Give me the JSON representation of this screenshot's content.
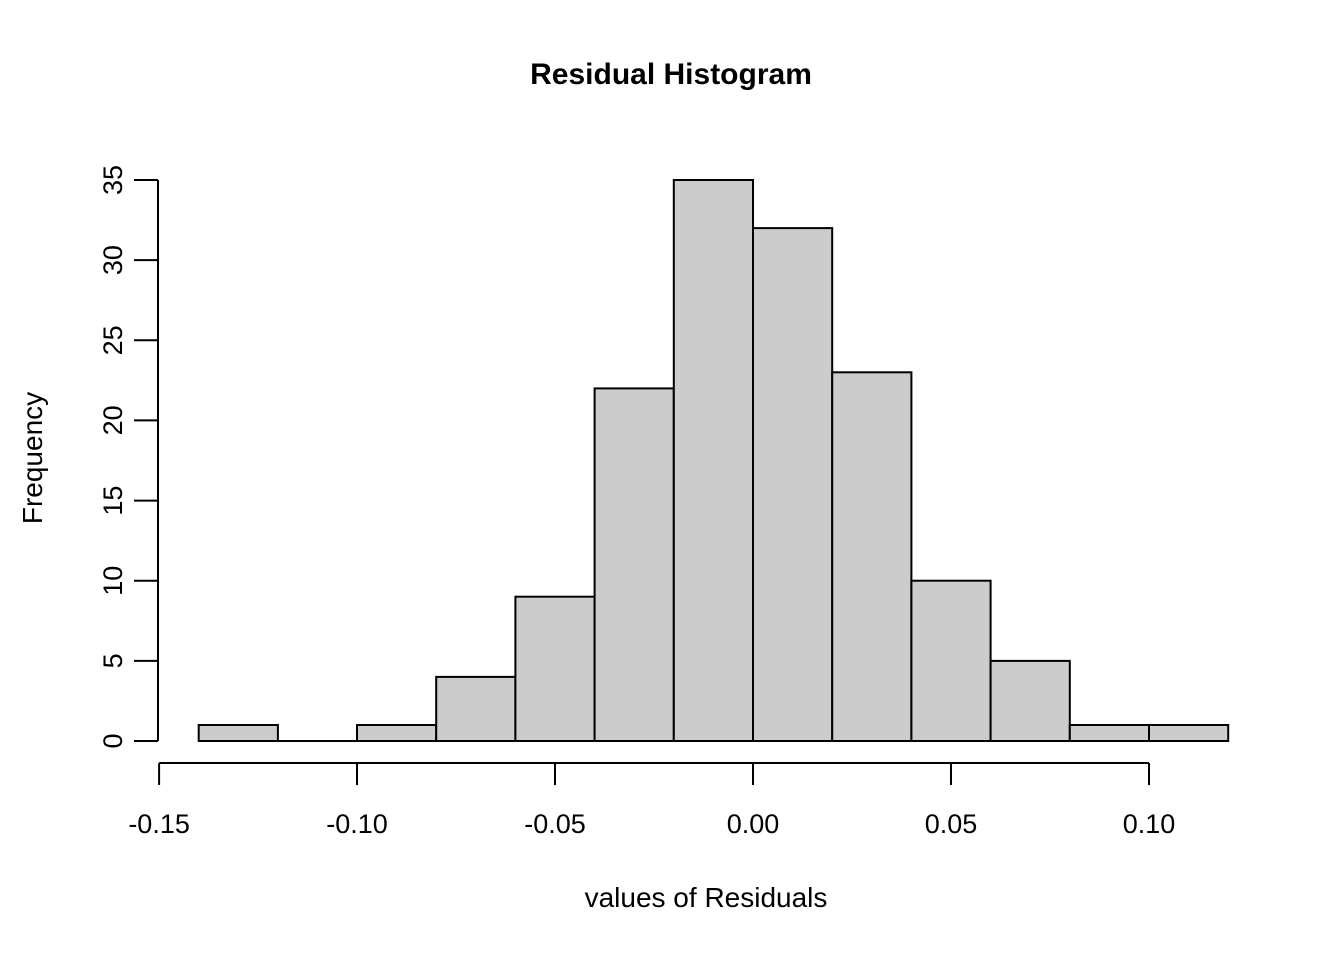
{
  "chart_data": {
    "type": "bar",
    "subtype": "histogram",
    "title": "Residual Histogram",
    "xlabel": "values of Residuals",
    "ylabel": "Frequency",
    "bin_width": 0.02,
    "bin_edges": [
      -0.14,
      -0.12,
      -0.1,
      -0.08,
      -0.06,
      -0.04,
      -0.02,
      0.0,
      0.02,
      0.04,
      0.06,
      0.08,
      0.1,
      0.12
    ],
    "frequencies": [
      1,
      0,
      1,
      4,
      9,
      22,
      35,
      32,
      23,
      10,
      5,
      1,
      1
    ],
    "x_ticks": [
      -0.15,
      -0.1,
      -0.05,
      0.0,
      0.05,
      0.1
    ],
    "x_tick_labels": [
      "-0.15",
      "-0.10",
      "-0.05",
      "0.00",
      "0.05",
      "0.10"
    ],
    "y_ticks": [
      0,
      5,
      10,
      15,
      20,
      25,
      30,
      35
    ],
    "y_tick_labels": [
      "0",
      "5",
      "10",
      "15",
      "20",
      "25",
      "30",
      "35"
    ],
    "xlim": [
      -0.15,
      0.12
    ],
    "ylim": [
      0,
      35
    ],
    "grid": false,
    "legend": null,
    "bar_fill": "#cccccc",
    "bar_stroke": "#000000",
    "axis_color": "#000000",
    "text_color": "#000000",
    "background": "#ffffff"
  }
}
